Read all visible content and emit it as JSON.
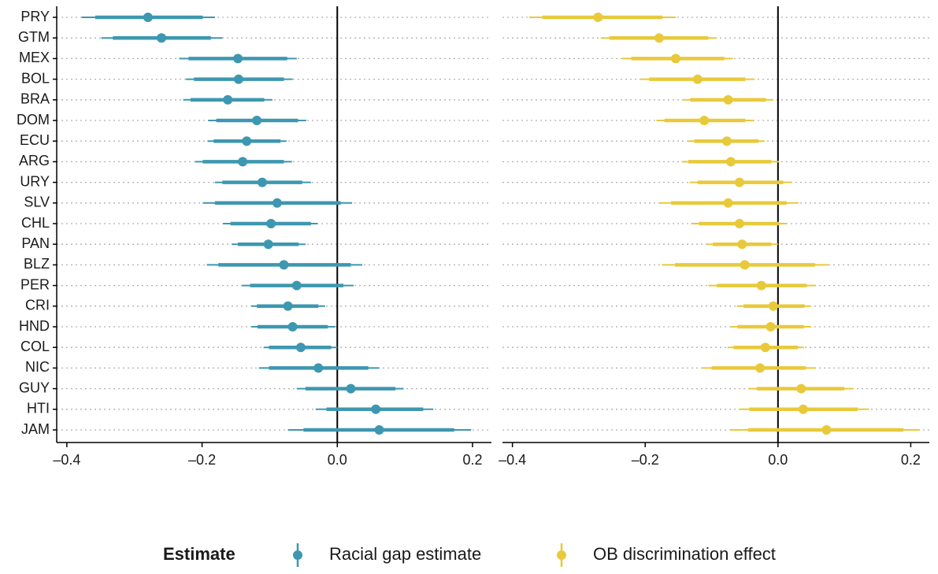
{
  "chart_data": {
    "type": "forest",
    "legend_title": "Estimate",
    "categories": [
      "PRY",
      "GTM",
      "MEX",
      "BOL",
      "BRA",
      "DOM",
      "ECU",
      "ARG",
      "URY",
      "SLV",
      "CHL",
      "PAN",
      "BLZ",
      "PER",
      "CRI",
      "HND",
      "COL",
      "NIC",
      "GUY",
      "HTI",
      "JAM"
    ],
    "xlim": [
      -0.415,
      0.228
    ],
    "xticks": [
      {
        "value": -0.4,
        "label": "–0.4"
      },
      {
        "value": -0.2,
        "label": "–0.2"
      },
      {
        "value": 0,
        "label": "0.0"
      },
      0.2
    ],
    "reference_line": 0,
    "grid": true,
    "series": [
      {
        "name": "Racial gap estimate",
        "color": "#3d97b0",
        "values": [
          -0.28,
          -0.26,
          -0.147,
          -0.146,
          -0.162,
          -0.119,
          -0.134,
          -0.14,
          -0.111,
          -0.089,
          -0.098,
          -0.102,
          -0.079,
          -0.06,
          -0.073,
          -0.066,
          -0.054,
          -0.028,
          0.02,
          0.057,
          0.062
        ],
        "lower": [
          -0.378,
          -0.349,
          -0.234,
          -0.224,
          -0.228,
          -0.191,
          -0.192,
          -0.21,
          -0.181,
          -0.199,
          -0.169,
          -0.156,
          -0.193,
          -0.141,
          -0.127,
          -0.127,
          -0.109,
          -0.116,
          -0.06,
          -0.032,
          -0.073
        ],
        "upper": [
          -0.181,
          -0.17,
          -0.06,
          -0.066,
          -0.096,
          -0.046,
          -0.075,
          -0.067,
          -0.039,
          0.022,
          -0.029,
          -0.047,
          0.037,
          0.024,
          -0.018,
          -0.003,
          0.0,
          0.062,
          0.098,
          0.142,
          0.198
        ],
        "lower_inner": [
          -0.358,
          -0.332,
          -0.22,
          -0.212,
          -0.217,
          -0.179,
          -0.183,
          -0.199,
          -0.17,
          -0.181,
          -0.158,
          -0.147,
          -0.176,
          -0.129,
          -0.119,
          -0.118,
          -0.101,
          -0.101,
          -0.047,
          -0.016,
          -0.05
        ],
        "upper_inner": [
          -0.199,
          -0.187,
          -0.074,
          -0.079,
          -0.108,
          -0.058,
          -0.084,
          -0.079,
          -0.052,
          0.005,
          -0.039,
          -0.057,
          0.02,
          0.009,
          -0.028,
          -0.014,
          -0.009,
          0.046,
          0.086,
          0.127,
          0.173
        ]
      },
      {
        "name": "OB discrimination effect",
        "color": "#e8c93a",
        "values": [
          -0.271,
          -0.179,
          -0.154,
          -0.121,
          -0.075,
          -0.111,
          -0.077,
          -0.071,
          -0.058,
          -0.075,
          -0.058,
          -0.054,
          -0.05,
          -0.025,
          -0.007,
          -0.011,
          -0.019,
          -0.027,
          0.035,
          0.038,
          0.073
        ],
        "lower": [
          -0.375,
          -0.267,
          -0.235,
          -0.207,
          -0.143,
          -0.183,
          -0.135,
          -0.145,
          -0.133,
          -0.179,
          -0.131,
          -0.107,
          -0.175,
          -0.105,
          -0.062,
          -0.071,
          -0.076,
          -0.114,
          -0.045,
          -0.058,
          -0.072
        ],
        "upper": [
          -0.154,
          -0.092,
          -0.068,
          -0.035,
          -0.007,
          -0.037,
          -0.02,
          0.002,
          0.02,
          0.031,
          0.013,
          0.0,
          0.076,
          0.057,
          0.05,
          0.05,
          0.039,
          0.057,
          0.114,
          0.137,
          0.213
        ],
        "lower_inner": [
          -0.355,
          -0.254,
          -0.221,
          -0.194,
          -0.132,
          -0.171,
          -0.126,
          -0.135,
          -0.121,
          -0.161,
          -0.119,
          -0.098,
          -0.155,
          -0.092,
          -0.052,
          -0.061,
          -0.067,
          -0.1,
          -0.032,
          -0.043,
          -0.045
        ],
        "upper_inner": [
          -0.174,
          -0.105,
          -0.081,
          -0.049,
          -0.018,
          -0.049,
          -0.029,
          -0.01,
          0.008,
          0.013,
          0.002,
          -0.01,
          0.056,
          0.043,
          0.04,
          0.039,
          0.03,
          0.042,
          0.1,
          0.12,
          0.189
        ]
      }
    ]
  }
}
